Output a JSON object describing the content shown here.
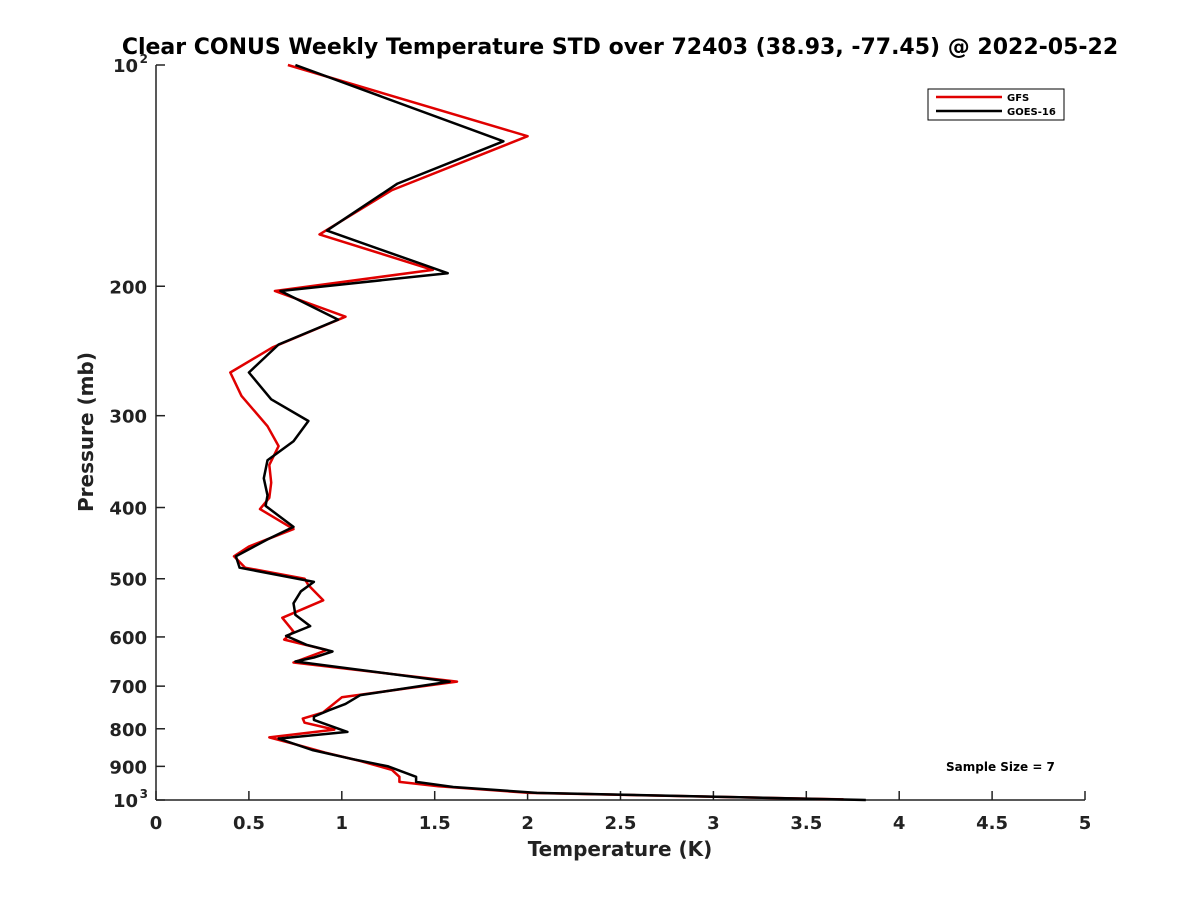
{
  "chart_data": {
    "type": "line",
    "title": "Clear CONUS Weekly Temperature STD over 72403 (38.93, -77.45) @ 2022-05-22",
    "xlabel": "Temperature (K)",
    "ylabel": "Pressure (mb)",
    "xlim": [
      0,
      5
    ],
    "ylim": [
      100,
      1000
    ],
    "y_scale": "log",
    "y_reversed": true,
    "grid": false,
    "legend_position": "top-right",
    "x_ticks": [
      {
        "value": 0,
        "label": "0"
      },
      {
        "value": 0.5,
        "label": "0.5"
      },
      {
        "value": 1,
        "label": "1"
      },
      {
        "value": 1.5,
        "label": "1.5"
      },
      {
        "value": 2,
        "label": "2"
      },
      {
        "value": 2.5,
        "label": "2.5"
      },
      {
        "value": 3,
        "label": "3"
      },
      {
        "value": 3.5,
        "label": "3.5"
      },
      {
        "value": 4,
        "label": "4"
      },
      {
        "value": 4.5,
        "label": "4.5"
      },
      {
        "value": 5,
        "label": "5"
      }
    ],
    "y_ticks": [
      {
        "value": 100,
        "label": "10",
        "sup": "2"
      },
      {
        "value": 200,
        "label": "200",
        "sup": ""
      },
      {
        "value": 300,
        "label": "300",
        "sup": ""
      },
      {
        "value": 400,
        "label": "400",
        "sup": ""
      },
      {
        "value": 500,
        "label": "500",
        "sup": ""
      },
      {
        "value": 600,
        "label": "600",
        "sup": ""
      },
      {
        "value": 700,
        "label": "700",
        "sup": ""
      },
      {
        "value": 800,
        "label": "800",
        "sup": ""
      },
      {
        "value": 900,
        "label": "900",
        "sup": ""
      },
      {
        "value": 1000,
        "label": "10",
        "sup": "3"
      }
    ],
    "series": [
      {
        "name": "GFS",
        "color": "#e00000",
        "points": [
          [
            0.71,
            100
          ],
          [
            2.0,
            125
          ],
          [
            1.27,
            148
          ],
          [
            0.88,
            170
          ],
          [
            1.49,
            190
          ],
          [
            0.64,
            203
          ],
          [
            1.02,
            220
          ],
          [
            0.63,
            242
          ],
          [
            0.4,
            262
          ],
          [
            0.46,
            282
          ],
          [
            0.6,
            310
          ],
          [
            0.66,
            330
          ],
          [
            0.61,
            350
          ],
          [
            0.62,
            370
          ],
          [
            0.61,
            388
          ],
          [
            0.56,
            402
          ],
          [
            0.74,
            428
          ],
          [
            0.5,
            452
          ],
          [
            0.42,
            466
          ],
          [
            0.48,
            483
          ],
          [
            0.8,
            500
          ],
          [
            0.82,
            510
          ],
          [
            0.9,
            535
          ],
          [
            0.68,
            565
          ],
          [
            0.74,
            590
          ],
          [
            0.69,
            605
          ],
          [
            0.92,
            625
          ],
          [
            0.74,
            650
          ],
          [
            1.62,
            690
          ],
          [
            1.35,
            705
          ],
          [
            1.0,
            725
          ],
          [
            0.9,
            760
          ],
          [
            0.79,
            775
          ],
          [
            0.8,
            785
          ],
          [
            0.96,
            802
          ],
          [
            0.61,
            822
          ],
          [
            0.75,
            840
          ],
          [
            0.91,
            862
          ],
          [
            1.1,
            885
          ],
          [
            1.27,
            910
          ],
          [
            1.31,
            930
          ],
          [
            1.31,
            945
          ],
          [
            1.52,
            958
          ],
          [
            2.01,
            978
          ],
          [
            3.7,
            998
          ]
        ]
      },
      {
        "name": "GOES-16",
        "color": "#000000",
        "points": [
          [
            0.75,
            100
          ],
          [
            1.87,
            127
          ],
          [
            1.3,
            145
          ],
          [
            0.92,
            168
          ],
          [
            1.57,
            192
          ],
          [
            0.67,
            203
          ],
          [
            0.98,
            222
          ],
          [
            0.66,
            240
          ],
          [
            0.5,
            262
          ],
          [
            0.62,
            285
          ],
          [
            0.82,
            305
          ],
          [
            0.74,
            325
          ],
          [
            0.6,
            345
          ],
          [
            0.58,
            365
          ],
          [
            0.6,
            385
          ],
          [
            0.59,
            398
          ],
          [
            0.74,
            425
          ],
          [
            0.6,
            442
          ],
          [
            0.43,
            466
          ],
          [
            0.45,
            483
          ],
          [
            0.85,
            505
          ],
          [
            0.78,
            520
          ],
          [
            0.74,
            540
          ],
          [
            0.75,
            560
          ],
          [
            0.83,
            580
          ],
          [
            0.7,
            598
          ],
          [
            0.81,
            615
          ],
          [
            0.95,
            628
          ],
          [
            0.85,
            640
          ],
          [
            0.75,
            648
          ],
          [
            1.58,
            690
          ],
          [
            1.1,
            720
          ],
          [
            1.02,
            740
          ],
          [
            0.93,
            755
          ],
          [
            0.85,
            770
          ],
          [
            0.85,
            778
          ],
          [
            1.03,
            808
          ],
          [
            0.66,
            825
          ],
          [
            0.84,
            855
          ],
          [
            1.06,
            880
          ],
          [
            1.25,
            900
          ],
          [
            1.4,
            930
          ],
          [
            1.4,
            945
          ],
          [
            1.6,
            960
          ],
          [
            2.05,
            978
          ],
          [
            3.82,
            1000
          ]
        ]
      }
    ],
    "annotation": "Sample Size = 7"
  }
}
